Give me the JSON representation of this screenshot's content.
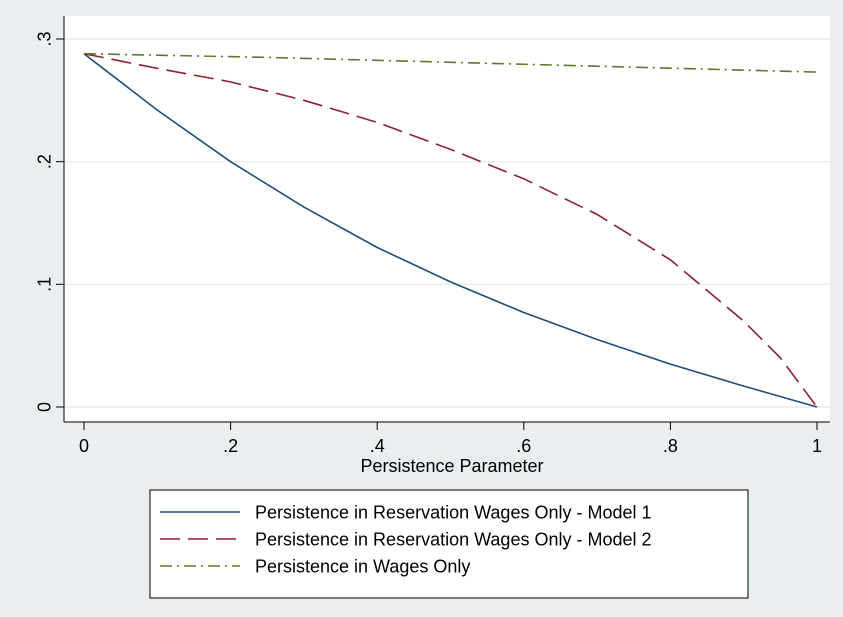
{
  "chart_data": {
    "type": "line",
    "xlabel": "Persistence Parameter",
    "ylabel": "",
    "xlim": [
      0,
      1
    ],
    "ylim": [
      0,
      0.3
    ],
    "xticks": [
      {
        "value": 0,
        "label": "0"
      },
      {
        "value": 0.2,
        "label": ".2"
      },
      {
        "value": 0.4,
        "label": ".4"
      },
      {
        "value": 0.6,
        "label": ".6"
      },
      {
        "value": 0.8,
        "label": ".8"
      },
      {
        "value": 1,
        "label": "1"
      }
    ],
    "yticks": [
      {
        "value": 0,
        "label": "0"
      },
      {
        "value": 0.1,
        "label": ".1"
      },
      {
        "value": 0.2,
        "label": ".2"
      },
      {
        "value": 0.3,
        "label": ".3"
      }
    ],
    "grid": "horizontal",
    "legend_position": "bottom",
    "series": [
      {
        "name": "Persistence in Reservation Wages Only - Model 1",
        "color": "#1f4e79",
        "dash": "solid",
        "x": [
          0,
          0.1,
          0.2,
          0.3,
          0.4,
          0.5,
          0.6,
          0.7,
          0.8,
          0.9,
          1.0
        ],
        "y": [
          0.288,
          0.242,
          0.2,
          0.163,
          0.13,
          0.102,
          0.077,
          0.055,
          0.035,
          0.017,
          0.0
        ]
      },
      {
        "name": "Persistence in Reservation Wages Only - Model 2",
        "color": "#8b2131",
        "dash": "long-dash",
        "x": [
          0,
          0.1,
          0.2,
          0.3,
          0.4,
          0.5,
          0.6,
          0.7,
          0.8,
          0.9,
          0.95,
          1.0
        ],
        "y": [
          0.288,
          0.276,
          0.265,
          0.25,
          0.232,
          0.21,
          0.186,
          0.157,
          0.12,
          0.07,
          0.04,
          0.0
        ]
      },
      {
        "name": "Persistence in Wages Only",
        "color": "#5b7a2e",
        "dash": "dash-dot",
        "x": [
          0,
          0.25,
          0.5,
          0.75,
          1.0
        ],
        "y": [
          0.288,
          0.285,
          0.281,
          0.277,
          0.273
        ]
      }
    ]
  }
}
